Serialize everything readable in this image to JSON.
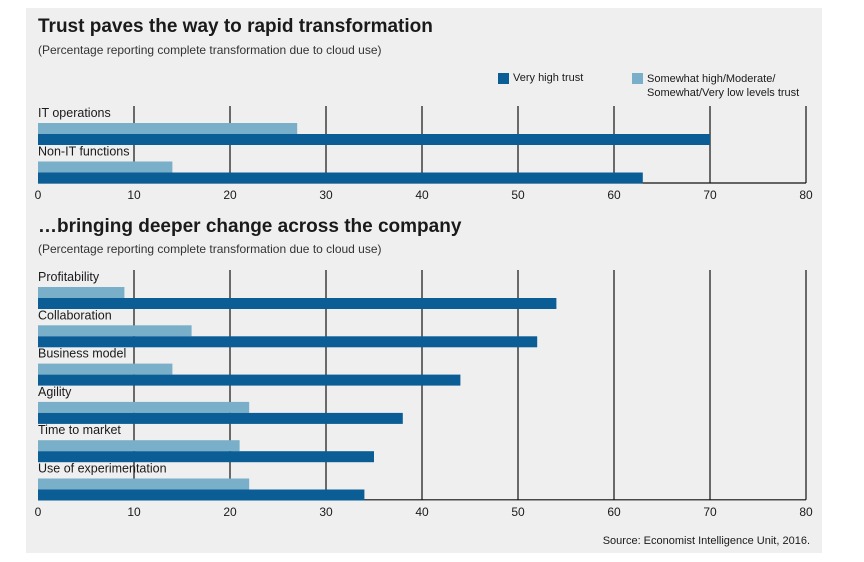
{
  "source": "Source: Economist Intelligence Unit, 2016.",
  "legend": [
    {
      "label_lines": [
        "Very high trust"
      ],
      "color": "#0b5d96"
    },
    {
      "label_lines": [
        "Somewhat high/Moderate/",
        "Somewhat/Very low levels trust"
      ],
      "color": "#7aafc9"
    }
  ],
  "chart_data": [
    {
      "type": "bar",
      "orientation": "horizontal",
      "title": "Trust paves the way to rapid transformation",
      "subtitle": "(Percentage reporting complete transformation due to cloud use)",
      "categories": [
        "IT operations",
        "Non-IT functions"
      ],
      "series": [
        {
          "name": "Very high trust",
          "values": [
            70,
            63
          ],
          "color": "#0b5d96"
        },
        {
          "name": "Somewhat high/Moderate/Somewhat/Very low levels trust",
          "values": [
            27,
            14
          ],
          "color": "#7aafc9"
        }
      ],
      "xlim": [
        0,
        80
      ],
      "xticks": [
        0,
        10,
        20,
        30,
        40,
        50,
        60,
        70,
        80
      ],
      "grid": true
    },
    {
      "type": "bar",
      "orientation": "horizontal",
      "title": "…bringing deeper change across the company",
      "subtitle": "(Percentage reporting complete transformation due to cloud use)",
      "categories": [
        "Profitability",
        "Collaboration",
        "Business model",
        "Agility",
        "Time to market",
        "Use of experimentation"
      ],
      "series": [
        {
          "name": "Very high trust",
          "values": [
            54,
            52,
            44,
            38,
            35,
            34
          ],
          "color": "#0b5d96"
        },
        {
          "name": "Somewhat high/Moderate/Somewhat/Very low levels trust",
          "values": [
            9,
            16,
            14,
            22,
            21,
            22
          ],
          "color": "#7aafc9"
        }
      ],
      "xlim": [
        0,
        80
      ],
      "xticks": [
        0,
        10,
        20,
        30,
        40,
        50,
        60,
        70,
        80
      ],
      "grid": true
    }
  ]
}
